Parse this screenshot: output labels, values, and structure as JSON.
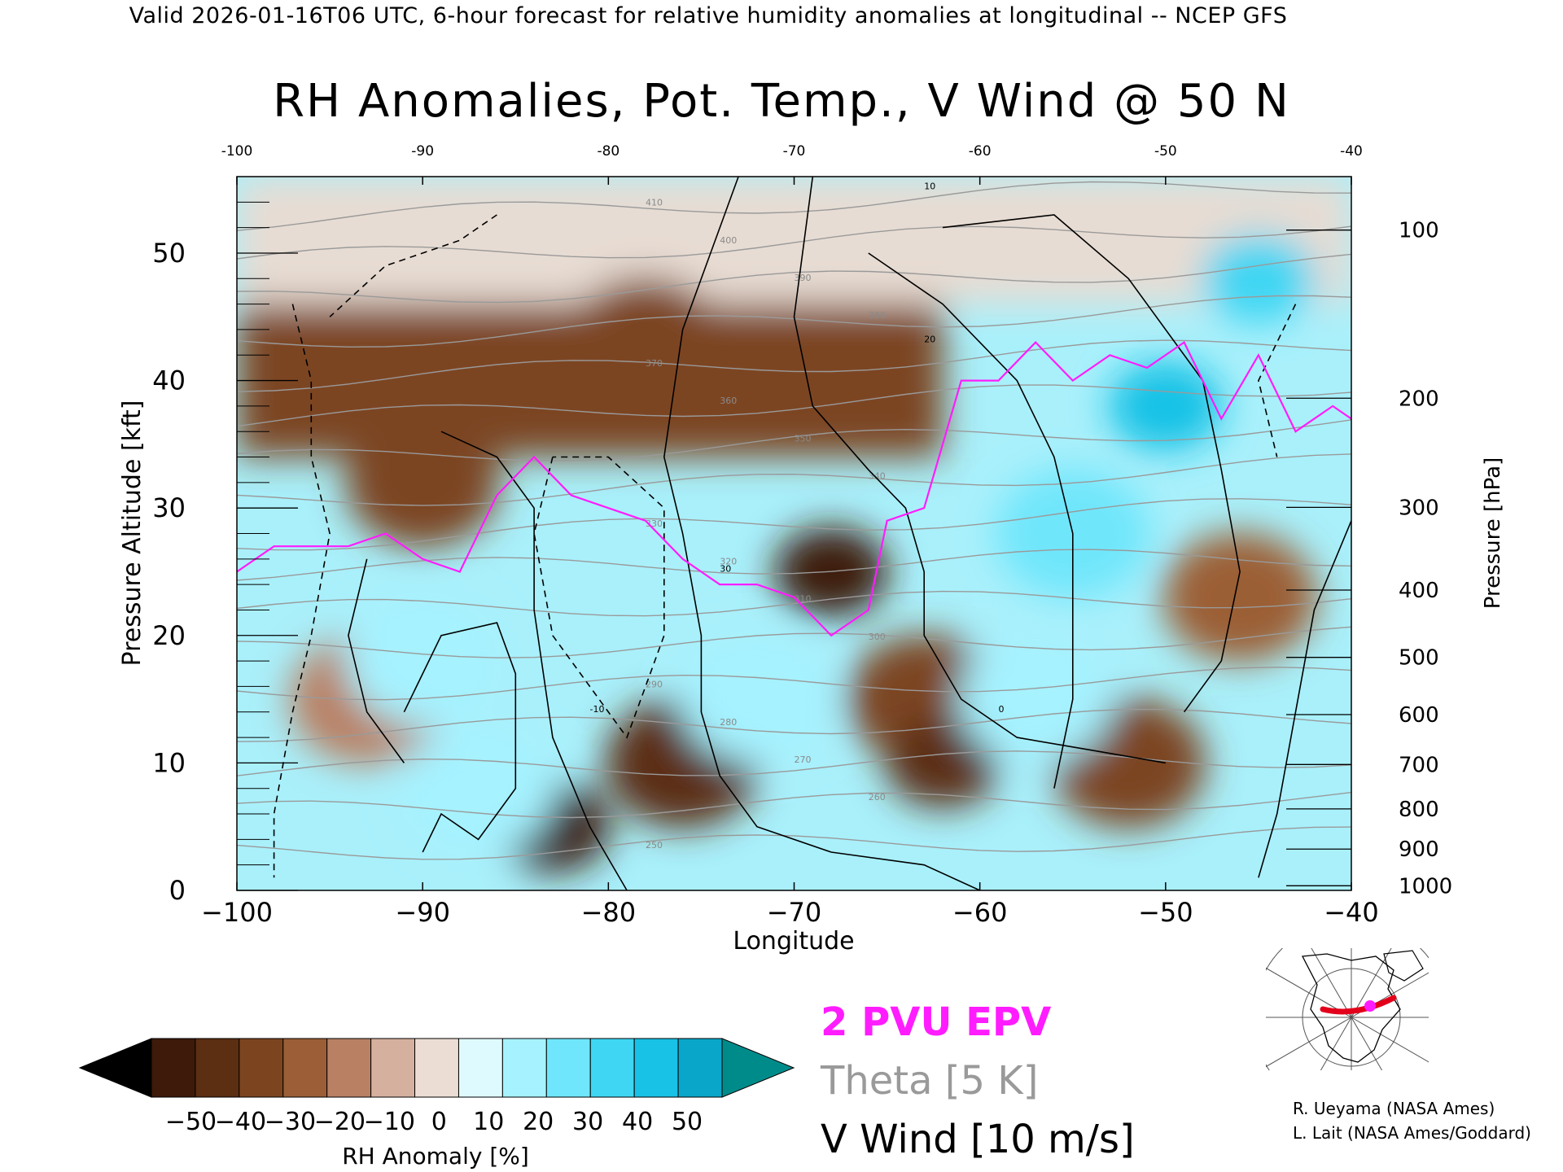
{
  "header": {
    "valid_line": "Valid 2026-01-16T06 UTC, 6-hour forecast for relative humidity anomalies at longitudinal -- NCEP GFS"
  },
  "chart_data": {
    "type": "heatmap",
    "title": "RH Anomalies, Pot. Temp., V Wind @ 50 N",
    "xlabel": "Longitude",
    "ylabel": "Pressure Altitude [kft]",
    "ylabel_right": "Pressure [hPa]",
    "xlim": [
      -100,
      -40
    ],
    "ylim": [
      0,
      56
    ],
    "x_ticks": [
      "-100",
      "-90",
      "-80",
      "-70",
      "-60",
      "-50",
      "-40"
    ],
    "x_ticks_top": [
      "-100",
      "-90",
      "-80",
      "-70",
      "-60",
      "-50",
      "-40"
    ],
    "y_ticks": [
      "0",
      "10",
      "20",
      "30",
      "40",
      "50"
    ],
    "pressure_ticks": [
      {
        "label": "100",
        "hpa": 100
      },
      {
        "label": "200",
        "hpa": 200
      },
      {
        "label": "300",
        "hpa": 300
      },
      {
        "label": "400",
        "hpa": 400
      },
      {
        "label": "500",
        "hpa": 500
      },
      {
        "label": "600",
        "hpa": 600
      },
      {
        "label": "700",
        "hpa": 700
      },
      {
        "label": "800",
        "hpa": 800
      },
      {
        "label": "900",
        "hpa": 900
      },
      {
        "label": "1000",
        "hpa": 1000
      }
    ],
    "colorbar": {
      "label": "RH Anomaly [%]",
      "tick_labels": [
        "-50",
        "-40",
        "-30",
        "-20",
        "-10",
        "0",
        "10",
        "20",
        "30",
        "40",
        "50"
      ],
      "colors": [
        "#000000",
        "#3d1a0a",
        "#5c2e12",
        "#7c4520",
        "#9b5e36",
        "#b98064",
        "#d6b09e",
        "#ecddd4",
        "#dffaff",
        "#a6f2ff",
        "#6fe6fb",
        "#3fd6f3",
        "#18c2e6",
        "#0aa6c9",
        "#008b8b"
      ]
    },
    "rh_anomaly_blobs": [
      {
        "lon": -78,
        "kft": 43,
        "value": -35
      },
      {
        "lon": -90,
        "kft": 32,
        "value": -30
      },
      {
        "lon": -83,
        "kft": 5,
        "value": -50
      },
      {
        "lon": -76,
        "kft": 10,
        "value": -40
      },
      {
        "lon": -68,
        "kft": 25,
        "value": -50
      },
      {
        "lon": -63,
        "kft": 15,
        "value": -30
      },
      {
        "lon": -62,
        "kft": 10,
        "value": -45
      },
      {
        "lon": -52,
        "kft": 10,
        "value": -30
      },
      {
        "lon": -46,
        "kft": 23,
        "value": -25
      },
      {
        "lon": -93,
        "kft": 15,
        "value": -15
      },
      {
        "lon": -50,
        "kft": 38,
        "value": 55
      },
      {
        "lon": -45,
        "kft": 48,
        "value": 45
      },
      {
        "lon": -55,
        "kft": 28,
        "value": 35
      },
      {
        "lon": -90,
        "kft": 18,
        "value": 30
      },
      {
        "lon": -87,
        "kft": 8,
        "value": 25
      },
      {
        "lon": -72,
        "kft": 15,
        "value": 25
      },
      {
        "lon": -57,
        "kft": 15,
        "value": 25
      }
    ],
    "theta_contour_labels": [
      "410",
      "400",
      "390",
      "380",
      "370",
      "360",
      "350",
      "340",
      "330",
      "320",
      "310",
      "300",
      "290",
      "280",
      "270",
      "260",
      "250"
    ],
    "epv_2pvu_line": [
      {
        "lon": -100,
        "kft": 25
      },
      {
        "lon": -98,
        "kft": 27
      },
      {
        "lon": -96,
        "kft": 27
      },
      {
        "lon": -94,
        "kft": 27
      },
      {
        "lon": -92,
        "kft": 28
      },
      {
        "lon": -90,
        "kft": 26
      },
      {
        "lon": -88,
        "kft": 25
      },
      {
        "lon": -86,
        "kft": 31
      },
      {
        "lon": -84,
        "kft": 34
      },
      {
        "lon": -82,
        "kft": 31
      },
      {
        "lon": -80,
        "kft": 30
      },
      {
        "lon": -78,
        "kft": 29
      },
      {
        "lon": -76,
        "kft": 26
      },
      {
        "lon": -74,
        "kft": 24
      },
      {
        "lon": -72,
        "kft": 24
      },
      {
        "lon": -70,
        "kft": 23
      },
      {
        "lon": -68,
        "kft": 20
      },
      {
        "lon": -66,
        "kft": 22
      },
      {
        "lon": -65,
        "kft": 29
      },
      {
        "lon": -63,
        "kft": 30
      },
      {
        "lon": -61,
        "kft": 40
      },
      {
        "lon": -59,
        "kft": 40
      },
      {
        "lon": -57,
        "kft": 43
      },
      {
        "lon": -55,
        "kft": 40
      },
      {
        "lon": -53,
        "kft": 42
      },
      {
        "lon": -51,
        "kft": 41
      },
      {
        "lon": -49,
        "kft": 43
      },
      {
        "lon": -47,
        "kft": 37
      },
      {
        "lon": -45,
        "kft": 42
      },
      {
        "lon": -43,
        "kft": 36
      },
      {
        "lon": -41,
        "kft": 38
      },
      {
        "lon": -40,
        "kft": 37
      }
    ],
    "v_wind_contour_labels": [
      "10",
      "20",
      "30",
      "0",
      "-10"
    ]
  },
  "legend": {
    "epv": "2 PVU EPV",
    "theta": "Theta [5 K]",
    "wind": "V Wind [10 m/s]"
  },
  "inset_map": {
    "latitude": 50,
    "lon_range": [
      -100,
      -40
    ],
    "line_color": "#e3001b",
    "marker_color": "#ff1cff"
  },
  "credits": {
    "line1": "R. Ueyama (NASA Ames)",
    "line2": "L. Lait (NASA Ames/Goddard)"
  }
}
